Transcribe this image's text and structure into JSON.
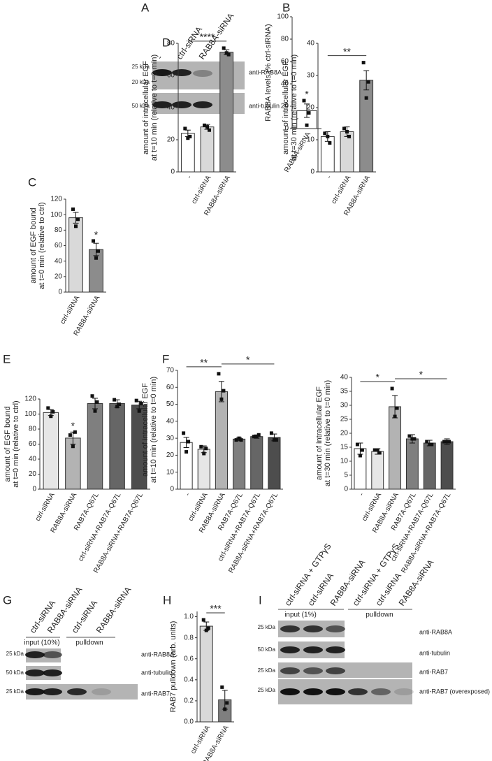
{
  "panel_letters": [
    "A",
    "B",
    "C",
    "D",
    "E",
    "F",
    "G",
    "H",
    "I"
  ],
  "blots": [
    {
      "lanes": [
        "-",
        "ctrl-siRNA",
        "RAB8A-siRNA"
      ],
      "markers": [
        "25 kDa",
        "20 kDa",
        "50 kDa"
      ],
      "antibodies": [
        "anti-RAB8A",
        "anti-tubulin"
      ]
    },
    {
      "lanes": [
        "ctrl-siRNA",
        "RAB8A-siRNA",
        "ctrl-siRNA",
        "RAB8A-siRNA"
      ],
      "groups": [
        "input (10%)",
        "pulldown"
      ],
      "markers": [
        "25 kDa",
        "50 kDa",
        "25 kDa"
      ],
      "antibodies": [
        "anti-RAB8A",
        "anti-tubulin",
        "anti-RAB7"
      ]
    },
    {
      "lanes": [
        "ctrl-siRNA + GTPγS",
        "ctrl-siRNA",
        "RAB8A-siRNA",
        "ctrl-siRNA + GTPγS",
        "ctrl-siRNA",
        "RAB8A-siRNA"
      ],
      "groups": [
        "input (1%)",
        "pulldown"
      ],
      "markers": [
        "25 kDa",
        "50 kDa",
        "25 kDa",
        "25 kDa"
      ],
      "antibodies": [
        "anti-RAB8A",
        "anti-tubulin",
        "anti-RAB7",
        "anti-RAB7 (overexposed)"
      ]
    }
  ],
  "chart_data": [
    {
      "type": "bar",
      "ylabel": [
        "RAB8A levels (% ctrl-siRNA)"
      ],
      "categories": [
        "RAB8A-siRNA"
      ],
      "values": [
        16
      ],
      "errors": [
        6
      ],
      "points": [
        [
          25,
          14,
          3
        ]
      ],
      "colors": [
        "#ffffff"
      ],
      "ylim": [
        0,
        100
      ],
      "yticks": [
        0,
        20,
        40,
        60,
        80,
        100
      ],
      "annotations": [
        {
          "text": "*",
          "at": 0
        }
      ]
    },
    {
      "type": "bar",
      "ylabel": [
        "amount of EGF bound",
        "at t=0 min (relative to ctrl)"
      ],
      "categories": [
        "ctrl-siRNA",
        "RAB8A-siRNA"
      ],
      "values": [
        96,
        55
      ],
      "errors": [
        7,
        8
      ],
      "points": [
        [
          107,
          94,
          85
        ],
        [
          66,
          53,
          44
        ]
      ],
      "colors": [
        "#d9d9d9",
        "#8c8c8c"
      ],
      "ylim": [
        0,
        120
      ],
      "yticks": [
        0,
        20,
        40,
        60,
        80,
        100,
        120
      ],
      "annotations": [
        {
          "text": "*",
          "at": 1
        }
      ]
    },
    {
      "type": "bar",
      "ylabel": [
        "amount of intracellular EGF",
        "at t=10 min (relative to t=0 min)"
      ],
      "categories": [
        "-",
        "ctrl-siRNA",
        "RAB8A-siRNA"
      ],
      "values": [
        24,
        28,
        74.5
      ],
      "errors": [
        2,
        1.5,
        1.5
      ],
      "points": [
        [
          27,
          22,
          21
        ],
        [
          29,
          26,
          28
        ],
        [
          77,
          73,
          74
        ]
      ],
      "colors": [
        "#ffffff",
        "#d9d9d9",
        "#8c8c8c"
      ],
      "ylim": [
        0,
        80
      ],
      "yticks": [
        0,
        20,
        40,
        60,
        80
      ],
      "significance": [
        {
          "text": "****",
          "from": 0,
          "to": 2
        }
      ]
    },
    {
      "type": "bar",
      "ylabel": [
        "amount of intracellular EGF",
        "at t=30 min (relative to t=0 min)"
      ],
      "categories": [
        "-",
        "ctrl-siRNA",
        "RAB8A-siRNA"
      ],
      "values": [
        11,
        12.5,
        28.5
      ],
      "errors": [
        1.5,
        1.5,
        3
      ],
      "points": [
        [
          12,
          9,
          11
        ],
        [
          13.5,
          11,
          12.5
        ],
        [
          34,
          28,
          23
        ]
      ],
      "colors": [
        "#ffffff",
        "#d9d9d9",
        "#8c8c8c"
      ],
      "ylim": [
        0,
        40
      ],
      "yticks": [
        0,
        10,
        20,
        30,
        40
      ],
      "significance": [
        {
          "text": "**",
          "from": 0,
          "to": 2
        }
      ]
    },
    {
      "type": "bar",
      "ylabel": [
        "amount of EGF bound",
        "at t=0 min (relative to ctrl)"
      ],
      "categories": [
        "ctrl-siRNA",
        "RAB8A-siRNA",
        "RAB7A-Q67L",
        "ctrl-siRNA+RAB7A-Q67L",
        "RAB8A-siRNA+RAB7A-Q67L"
      ],
      "values": [
        102,
        68,
        114,
        114,
        112
      ],
      "errors": [
        4,
        8,
        7,
        5,
        5
      ],
      "points": [
        [
          108,
          103,
          97
        ],
        [
          72,
          76,
          57
        ],
        [
          124,
          116,
          104
        ],
        [
          119,
          113,
          110
        ],
        [
          118,
          114,
          104
        ]
      ],
      "colors": [
        "#e6e6e6",
        "#b3b3b3",
        "#7f7f7f",
        "#666666",
        "#4d4d4d"
      ],
      "ylim": [
        0,
        120
      ],
      "yticks": [
        0,
        20,
        40,
        60,
        80,
        100,
        120
      ],
      "annotations": [
        {
          "text": "*",
          "at": 1
        }
      ]
    },
    {
      "type": "bar",
      "ylabel": [
        "amount of intracellular EGF",
        "at t=10 min (relative to t=0 min)"
      ],
      "categories": [
        "-",
        "ctrl-siRNA",
        "RAB8A-siRNA",
        "RAB7A-Q67L",
        "ctrl-siRNA+RAB7A-Q67L",
        "RAB8A-siRNA+RAB7A-Q67L"
      ],
      "values": [
        27.5,
        23.5,
        57.5,
        29.5,
        31,
        30.5
      ],
      "errors": [
        3,
        2,
        6,
        1,
        1,
        2
      ],
      "points": [
        [
          33,
          28,
          22
        ],
        [
          25,
          24,
          21
        ],
        [
          68,
          58,
          53
        ],
        [
          29,
          29,
          30
        ],
        [
          31,
          32,
          31
        ],
        [
          33,
          29,
          29
        ]
      ],
      "colors": [
        "#ffffff",
        "#e6e6e6",
        "#b3b3b3",
        "#7f7f7f",
        "#666666",
        "#4d4d4d"
      ],
      "ylim": [
        0,
        70
      ],
      "yticks": [
        0,
        10,
        20,
        30,
        40,
        50,
        60,
        70
      ],
      "significance": [
        {
          "text": "**",
          "from": 0,
          "to": 2
        },
        {
          "text": "*",
          "from": 2,
          "to": 5
        }
      ]
    },
    {
      "type": "bar",
      "ylabel": [
        "amount of intracellular EGF",
        "at t=30 min (relative to t=0 min)"
      ],
      "categories": [
        "-",
        "ctrl-siRNA",
        "RAB8A-siRNA",
        "RAB7A-Q67L",
        "ctrl-siRNA+RAB7A-Q67L",
        "RAB8A-siRNA+RAB7A-Q67L"
      ],
      "values": [
        14.5,
        13.5,
        29.5,
        18,
        16.5,
        17
      ],
      "errors": [
        2,
        1,
        4,
        1.5,
        1,
        1
      ],
      "points": [
        [
          16,
          14,
          12
        ],
        [
          14,
          13,
          14
        ],
        [
          36,
          29,
          26
        ],
        [
          19,
          18,
          18
        ],
        [
          17,
          16,
          16
        ],
        [
          17,
          17,
          17
        ]
      ],
      "colors": [
        "#ffffff",
        "#e6e6e6",
        "#b3b3b3",
        "#7f7f7f",
        "#666666",
        "#4d4d4d"
      ],
      "ylim": [
        0,
        40
      ],
      "yticks": [
        0,
        5,
        10,
        15,
        20,
        25,
        30,
        35,
        40
      ],
      "significance": [
        {
          "text": "*",
          "from": 0,
          "to": 2
        },
        {
          "text": "*",
          "from": 2,
          "to": 5
        }
      ]
    },
    {
      "type": "bar",
      "ylabel": [
        "RAB7 pulldown (arb. units)"
      ],
      "categories": [
        "ctrl-siRNA",
        "RAB8A-siRNA"
      ],
      "values": [
        0.91,
        0.21
      ],
      "errors": [
        0.04,
        0.09
      ],
      "points": [
        [
          0.97,
          0.89,
          0.87
        ],
        [
          0.33,
          0.18,
          0.12
        ]
      ],
      "colors": [
        "#d9d9d9",
        "#7f7f7f"
      ],
      "ylim": [
        0,
        1.05
      ],
      "yticks": [
        {
          "value": 0,
          "label": "0.0"
        },
        {
          "value": 0.2,
          "label": "0.2"
        },
        {
          "value": 0.4,
          "label": "0.4"
        },
        {
          "value": 0.6,
          "label": "0.6"
        },
        {
          "value": 0.8,
          "label": "0.8"
        },
        {
          "value": 1,
          "label": "1.0"
        }
      ],
      "significance": [
        {
          "text": "***",
          "from": 0,
          "to": 1
        }
      ]
    }
  ]
}
